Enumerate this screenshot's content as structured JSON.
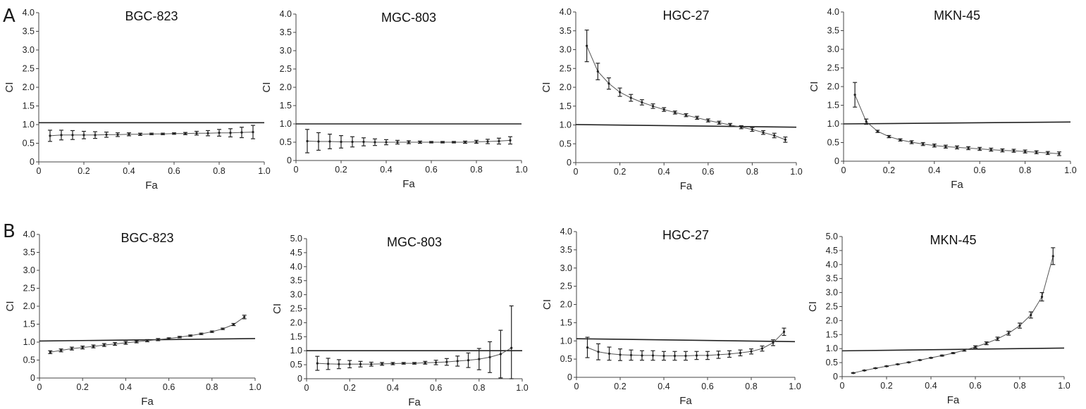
{
  "panels": [
    {
      "letter": "A"
    },
    {
      "letter": "B"
    }
  ],
  "chart_data": [
    {
      "type": "line",
      "panel": "A",
      "title": "BGC-823",
      "xlabel": "Fa",
      "ylabel": "CI",
      "xlim": [
        0,
        1
      ],
      "ylim": [
        0,
        4
      ],
      "x": [
        0.05,
        0.1,
        0.15,
        0.2,
        0.25,
        0.3,
        0.35,
        0.4,
        0.45,
        0.5,
        0.55,
        0.6,
        0.65,
        0.7,
        0.75,
        0.8,
        0.85,
        0.9,
        0.95
      ],
      "values": [
        0.7,
        0.72,
        0.72,
        0.72,
        0.72,
        0.73,
        0.73,
        0.74,
        0.74,
        0.75,
        0.75,
        0.76,
        0.76,
        0.77,
        0.77,
        0.78,
        0.78,
        0.79,
        0.8
      ],
      "errors": [
        0.15,
        0.13,
        0.12,
        0.1,
        0.09,
        0.07,
        0.05,
        0.04,
        0.03,
        0.02,
        0.02,
        0.02,
        0.03,
        0.05,
        0.07,
        0.09,
        0.11,
        0.14,
        0.18
      ],
      "reference": [
        1.05,
        1.05
      ]
    },
    {
      "type": "line",
      "panel": "A",
      "title": "MGC-803",
      "xlabel": "Fa",
      "ylabel": "CI",
      "xlim": [
        0,
        1
      ],
      "ylim": [
        0,
        4
      ],
      "x": [
        0.05,
        0.1,
        0.15,
        0.2,
        0.25,
        0.3,
        0.35,
        0.4,
        0.45,
        0.5,
        0.55,
        0.6,
        0.65,
        0.7,
        0.75,
        0.8,
        0.85,
        0.9,
        0.95
      ],
      "values": [
        0.53,
        0.52,
        0.52,
        0.51,
        0.51,
        0.51,
        0.5,
        0.5,
        0.5,
        0.5,
        0.5,
        0.5,
        0.5,
        0.5,
        0.5,
        0.51,
        0.52,
        0.53,
        0.55
      ],
      "errors": [
        0.32,
        0.24,
        0.2,
        0.17,
        0.14,
        0.11,
        0.09,
        0.07,
        0.05,
        0.04,
        0.03,
        0.02,
        0.02,
        0.02,
        0.03,
        0.04,
        0.06,
        0.08,
        0.1
      ],
      "reference": [
        1.0,
        1.0
      ]
    },
    {
      "type": "line",
      "panel": "A",
      "title": "HGC-27",
      "xlabel": "Fa",
      "ylabel": "CI",
      "xlim": [
        0,
        1
      ],
      "ylim": [
        0,
        4
      ],
      "x": [
        0.05,
        0.1,
        0.15,
        0.2,
        0.25,
        0.3,
        0.35,
        0.4,
        0.45,
        0.5,
        0.55,
        0.6,
        0.65,
        0.7,
        0.75,
        0.8,
        0.85,
        0.9,
        0.95
      ],
      "values": [
        3.1,
        2.42,
        2.1,
        1.87,
        1.72,
        1.6,
        1.5,
        1.41,
        1.33,
        1.26,
        1.19,
        1.12,
        1.06,
        1.0,
        0.94,
        0.88,
        0.8,
        0.72,
        0.61
      ],
      "errors": [
        0.42,
        0.22,
        0.15,
        0.11,
        0.09,
        0.07,
        0.06,
        0.05,
        0.04,
        0.04,
        0.04,
        0.04,
        0.04,
        0.04,
        0.04,
        0.05,
        0.05,
        0.06,
        0.07
      ],
      "reference": [
        1.01,
        0.94
      ]
    },
    {
      "type": "line",
      "panel": "A",
      "title": "MKN-45",
      "xlabel": "Fa",
      "ylabel": "CI",
      "xlim": [
        0,
        1
      ],
      "ylim": [
        0,
        4
      ],
      "x": [
        0.05,
        0.1,
        0.15,
        0.2,
        0.25,
        0.3,
        0.35,
        0.4,
        0.45,
        0.5,
        0.55,
        0.6,
        0.65,
        0.7,
        0.75,
        0.8,
        0.85,
        0.9,
        0.95
      ],
      "values": [
        1.78,
        1.06,
        0.8,
        0.66,
        0.57,
        0.51,
        0.46,
        0.42,
        0.39,
        0.37,
        0.35,
        0.33,
        0.31,
        0.29,
        0.28,
        0.26,
        0.24,
        0.22,
        0.2
      ],
      "errors": [
        0.33,
        0.07,
        0.03,
        0.03,
        0.03,
        0.04,
        0.04,
        0.04,
        0.04,
        0.04,
        0.04,
        0.04,
        0.04,
        0.04,
        0.04,
        0.04,
        0.04,
        0.04,
        0.05
      ],
      "reference": [
        1.0,
        1.05
      ]
    },
    {
      "type": "line",
      "panel": "B",
      "title": "BGC-823",
      "xlabel": "Fa",
      "ylabel": "CI",
      "xlim": [
        0,
        1
      ],
      "ylim": [
        0,
        4
      ],
      "x": [
        0.05,
        0.1,
        0.15,
        0.2,
        0.25,
        0.3,
        0.35,
        0.4,
        0.45,
        0.5,
        0.55,
        0.6,
        0.65,
        0.7,
        0.75,
        0.8,
        0.85,
        0.9,
        0.95
      ],
      "values": [
        0.72,
        0.77,
        0.82,
        0.85,
        0.88,
        0.92,
        0.95,
        0.98,
        1.01,
        1.04,
        1.07,
        1.1,
        1.14,
        1.18,
        1.23,
        1.29,
        1.37,
        1.49,
        1.7
      ],
      "errors": [
        0.04,
        0.04,
        0.04,
        0.04,
        0.04,
        0.04,
        0.04,
        0.04,
        0.03,
        0.03,
        0.03,
        0.02,
        0.02,
        0.02,
        0.02,
        0.02,
        0.02,
        0.03,
        0.05
      ],
      "reference": [
        1.03,
        1.1
      ]
    },
    {
      "type": "line",
      "panel": "B",
      "title": "MGC-803",
      "xlabel": "Fa",
      "ylabel": "CI",
      "xlim": [
        0,
        1
      ],
      "ylim": [
        0,
        5
      ],
      "x": [
        0.05,
        0.1,
        0.15,
        0.2,
        0.25,
        0.3,
        0.35,
        0.4,
        0.45,
        0.5,
        0.55,
        0.6,
        0.65,
        0.7,
        0.75,
        0.8,
        0.85,
        0.9,
        0.95
      ],
      "values": [
        0.55,
        0.53,
        0.52,
        0.52,
        0.52,
        0.52,
        0.53,
        0.54,
        0.55,
        0.55,
        0.57,
        0.58,
        0.6,
        0.63,
        0.66,
        0.7,
        0.77,
        0.88,
        1.1
      ],
      "errors": [
        0.25,
        0.2,
        0.16,
        0.13,
        0.1,
        0.07,
        0.05,
        0.04,
        0.03,
        0.03,
        0.05,
        0.08,
        0.12,
        0.18,
        0.26,
        0.38,
        0.55,
        0.85,
        1.5
      ],
      "reference": [
        1.0,
        1.0
      ]
    },
    {
      "type": "line",
      "panel": "B",
      "title": "HGC-27",
      "xlabel": "Fa",
      "ylabel": "CI",
      "xlim": [
        0,
        1
      ],
      "ylim": [
        0,
        4
      ],
      "x": [
        0.05,
        0.1,
        0.15,
        0.2,
        0.25,
        0.3,
        0.35,
        0.4,
        0.45,
        0.5,
        0.55,
        0.6,
        0.65,
        0.7,
        0.75,
        0.8,
        0.85,
        0.9,
        0.95
      ],
      "values": [
        0.82,
        0.7,
        0.65,
        0.62,
        0.61,
        0.6,
        0.6,
        0.59,
        0.59,
        0.59,
        0.6,
        0.6,
        0.62,
        0.64,
        0.67,
        0.71,
        0.79,
        0.95,
        1.25
      ],
      "errors": [
        0.28,
        0.22,
        0.18,
        0.16,
        0.14,
        0.13,
        0.13,
        0.12,
        0.12,
        0.12,
        0.11,
        0.11,
        0.1,
        0.09,
        0.08,
        0.07,
        0.07,
        0.08,
        0.1
      ],
      "reference": [
        1.06,
        0.98
      ]
    },
    {
      "type": "line",
      "panel": "B",
      "title": "MKN-45",
      "xlabel": "Fa",
      "ylabel": "CI",
      "xlim": [
        0,
        1
      ],
      "ylim": [
        0,
        5
      ],
      "x": [
        0.05,
        0.1,
        0.15,
        0.2,
        0.25,
        0.3,
        0.35,
        0.4,
        0.45,
        0.5,
        0.55,
        0.6,
        0.65,
        0.7,
        0.75,
        0.8,
        0.85,
        0.9,
        0.95
      ],
      "values": [
        0.13,
        0.22,
        0.3,
        0.37,
        0.44,
        0.51,
        0.59,
        0.67,
        0.75,
        0.84,
        0.94,
        1.06,
        1.19,
        1.35,
        1.55,
        1.82,
        2.2,
        2.85,
        4.3
      ],
      "errors": [
        0.01,
        0.01,
        0.01,
        0.01,
        0.01,
        0.01,
        0.01,
        0.01,
        0.02,
        0.02,
        0.03,
        0.04,
        0.05,
        0.06,
        0.07,
        0.09,
        0.11,
        0.15,
        0.3
      ],
      "reference": [
        0.92,
        1.02
      ]
    }
  ]
}
